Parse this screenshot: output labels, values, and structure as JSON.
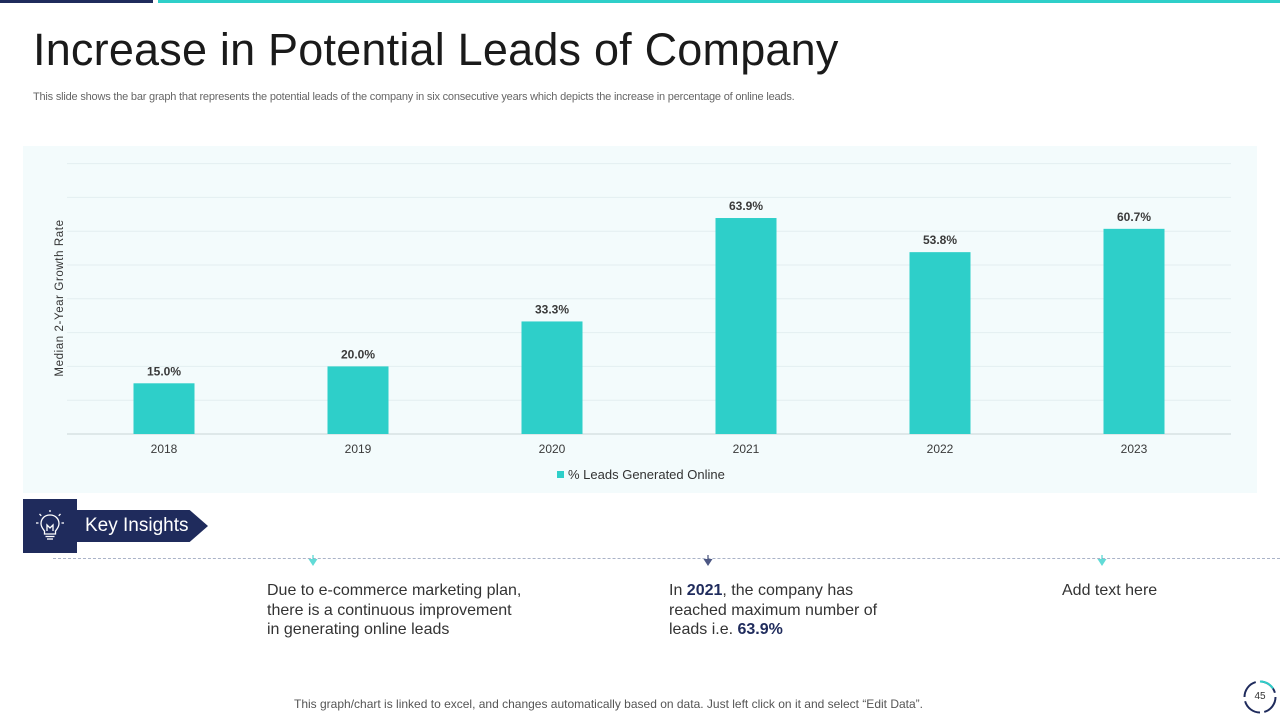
{
  "slide": {
    "title": "Increase in Potential Leads of Company",
    "subtitle": "This slide shows the bar graph that represents the potential leads of the company in six consecutive years which depicts the increase in percentage of online leads.",
    "footnote": "This graph/chart is linked to excel, and changes automatically based on data. Just left click on it and select “Edit Data”.",
    "page_number": "45"
  },
  "colors": {
    "accent": "#2ecfc9",
    "navy": "#1f2b5c",
    "panel": "#f3fbfc"
  },
  "chart_data": {
    "type": "bar",
    "title": "",
    "categories": [
      "2018",
      "2019",
      "2020",
      "2021",
      "2022",
      "2023"
    ],
    "series": [
      {
        "name": "% Leads Generated Online",
        "values": [
          15.0,
          20.0,
          33.3,
          63.9,
          53.8,
          60.7
        ]
      }
    ],
    "value_labels": [
      "15.0%",
      "20.0%",
      "33.3%",
      "63.9%",
      "53.8%",
      "60.7%"
    ],
    "xlabel": "",
    "ylabel": "Median 2-Year Growth Rate",
    "ylim": [
      0,
      80
    ],
    "gridlines": true,
    "legend": "bottom-center"
  },
  "insights": {
    "label": "Key Insights",
    "icon": "lightbulb-icon",
    "items": [
      {
        "line1": "Due to e-commerce marketing plan,",
        "line2": "there is a continuous  improvement",
        "line3": "in generating online leads"
      },
      {
        "pre": "In ",
        "year": "2021",
        "line1_rest": ", the company has",
        "line2": "reached maximum number of",
        "line3_pre": "leads i.e. ",
        "value": "63.9%"
      },
      {
        "line1": "Add text here"
      }
    ]
  }
}
